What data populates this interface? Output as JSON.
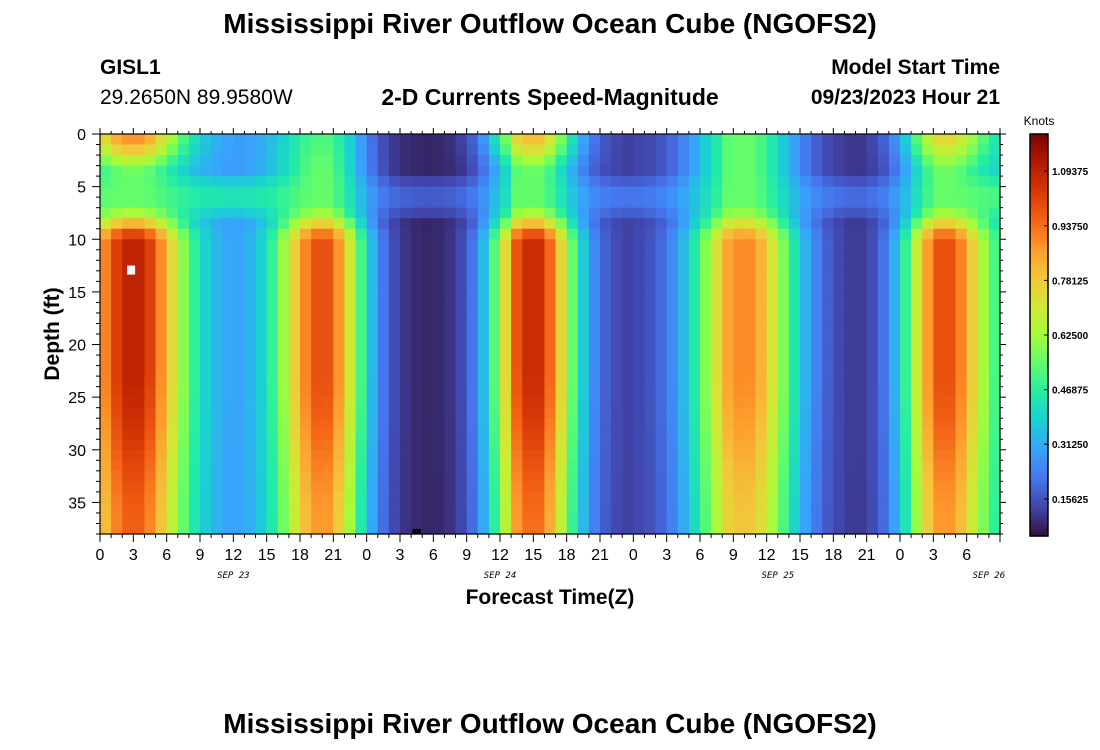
{
  "header": {
    "title": "Mississippi River Outflow Ocean Cube (NGOFS2)",
    "station_id": "GISL1",
    "station_coords": "29.2650N  89.9580W",
    "subtitle": "2-D Currents Speed-Magnitude",
    "model_start_label": "Model Start Time",
    "model_start_value": "09/23/2023 Hour 21"
  },
  "chart_data": {
    "type": "heatmap",
    "title": "2-D Currents Speed-Magnitude",
    "xlabel": "Forecast Time(Z)",
    "ylabel": "Depth (ft)",
    "x_hours_from_start": [
      0,
      81
    ],
    "x_ticks": [
      "0",
      "3",
      "6",
      "9",
      "12",
      "15",
      "18",
      "21",
      "0",
      "3",
      "6",
      "9",
      "12",
      "15",
      "18",
      "21",
      "0",
      "3",
      "6",
      "9",
      "12",
      "15",
      "18",
      "21",
      "0",
      "3",
      "6"
    ],
    "date_labels": [
      {
        "label": "SEP 23",
        "hour": 12
      },
      {
        "label": "SEP 24",
        "hour": 36
      },
      {
        "label": "SEP 25",
        "hour": 61
      },
      {
        "label": "SEP 26",
        "hour": 80
      }
    ],
    "ylim": [
      0,
      38
    ],
    "y_ticks": [
      0,
      5,
      10,
      15,
      20,
      25,
      30,
      35
    ],
    "grid": false,
    "colorbar": {
      "label": "Knots",
      "ticks": [
        "1.09375",
        "0.93750",
        "0.78125",
        "0.62500",
        "0.46875",
        "0.31250",
        "0.15625"
      ],
      "tick_values": [
        1.09375,
        0.9375,
        0.78125,
        0.625,
        0.46875,
        0.3125,
        0.15625
      ],
      "range": [
        0.05,
        1.2
      ],
      "colors": [
        "#30123b",
        "#4145ab",
        "#4675ed",
        "#39a2fc",
        "#1bcfd4",
        "#24eca6",
        "#61fc6c",
        "#a4fc3b",
        "#d1e834",
        "#f3c63a",
        "#fe9b2d",
        "#f36315",
        "#d93806",
        "#b11901",
        "#7a0403"
      ]
    },
    "current_peaks": [
      {
        "hour": 3,
        "deep_speed": 1.1,
        "surface_speed": 0.9
      },
      {
        "hour": 20,
        "deep_speed": 1.0,
        "surface_speed": 0.52
      },
      {
        "hour": 39,
        "deep_speed": 1.08,
        "surface_speed": 0.82
      },
      {
        "hour": 58,
        "deep_speed": 0.9,
        "surface_speed": 0.55
      },
      {
        "hour": 76,
        "deep_speed": 1.0,
        "surface_speed": 0.76
      }
    ],
    "slack_minima": [
      {
        "hour": 12,
        "speed": 0.28
      },
      {
        "hour": 28.5,
        "speed": 0.08
      },
      {
        "hour": 47,
        "speed": 0.12
      },
      {
        "hour": 66.5,
        "speed": 0.1
      }
    ]
  }
}
